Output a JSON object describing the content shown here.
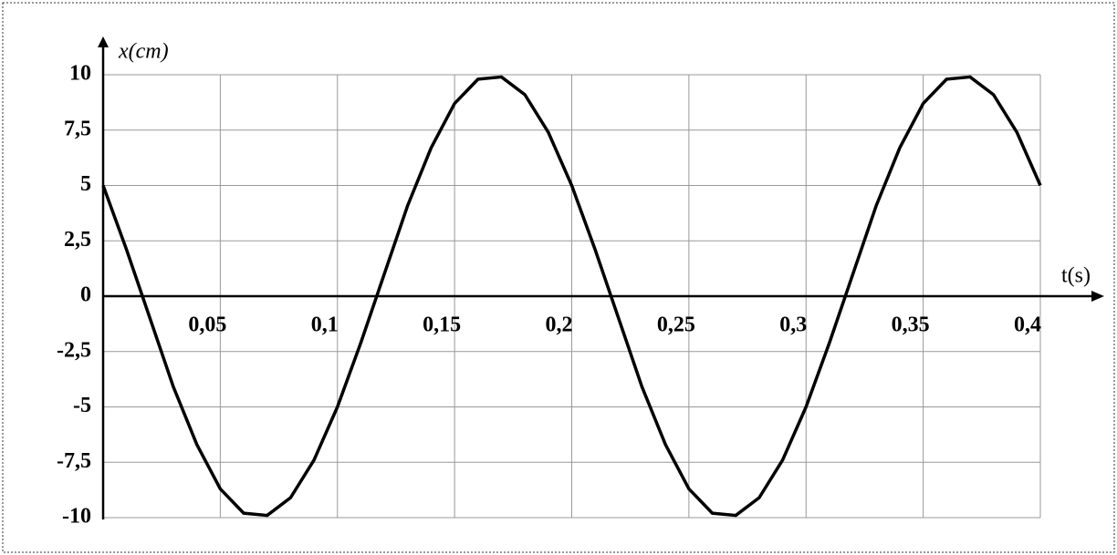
{
  "chart_data": {
    "type": "line",
    "x_label": "t(s)",
    "y_label": "x(cm)",
    "x": [
      0,
      0.01,
      0.02,
      0.03,
      0.04,
      0.05,
      0.06,
      0.07,
      0.08,
      0.09,
      0.1,
      0.11,
      0.12,
      0.13,
      0.14,
      0.15,
      0.16,
      0.17,
      0.18,
      0.19,
      0.2,
      0.21,
      0.22,
      0.23,
      0.24,
      0.25,
      0.26,
      0.27,
      0.28,
      0.29,
      0.3,
      0.31,
      0.32,
      0.33,
      0.34,
      0.35,
      0.36,
      0.37,
      0.38,
      0.39,
      0.4
    ],
    "series": [
      {
        "color": "#000000",
        "values": [
          5,
          2.1,
          -1.0,
          -4.1,
          -6.7,
          -8.7,
          -9.8,
          -9.9,
          -9.1,
          -7.4,
          -5,
          -2.1,
          1.0,
          4.1,
          6.7,
          8.7,
          9.8,
          9.9,
          9.1,
          7.4,
          5,
          2.1,
          -1.0,
          -4.1,
          -6.7,
          -8.7,
          -9.8,
          -9.9,
          -9.1,
          -7.4,
          -5,
          -2.1,
          1.0,
          4.1,
          6.7,
          8.7,
          9.8,
          9.9,
          9.1,
          7.4,
          5
        ]
      }
    ],
    "xlim": [
      0,
      0.4
    ],
    "xticks": [
      {
        "value": 0.05,
        "label": "0,05"
      },
      {
        "value": 0.1,
        "label": "0,1"
      },
      {
        "value": 0.15,
        "label": "0,15"
      },
      {
        "value": 0.2,
        "label": "0,2"
      },
      {
        "value": 0.25,
        "label": "0,25"
      },
      {
        "value": 0.3,
        "label": "0,3"
      },
      {
        "value": 0.35,
        "label": "0,35"
      },
      {
        "value": 0.4,
        "label": "0,4"
      }
    ],
    "ylim": [
      -10,
      10
    ],
    "yticks": [
      10,
      {
        "value": 7.5,
        "label": "7,5"
      },
      5,
      {
        "value": 2.5,
        "label": "2,5"
      },
      0,
      {
        "value": -2.5,
        "label": "-2,5"
      },
      -5,
      {
        "value": -7.5,
        "label": "-7,5"
      },
      -10
    ],
    "grid": true
  }
}
